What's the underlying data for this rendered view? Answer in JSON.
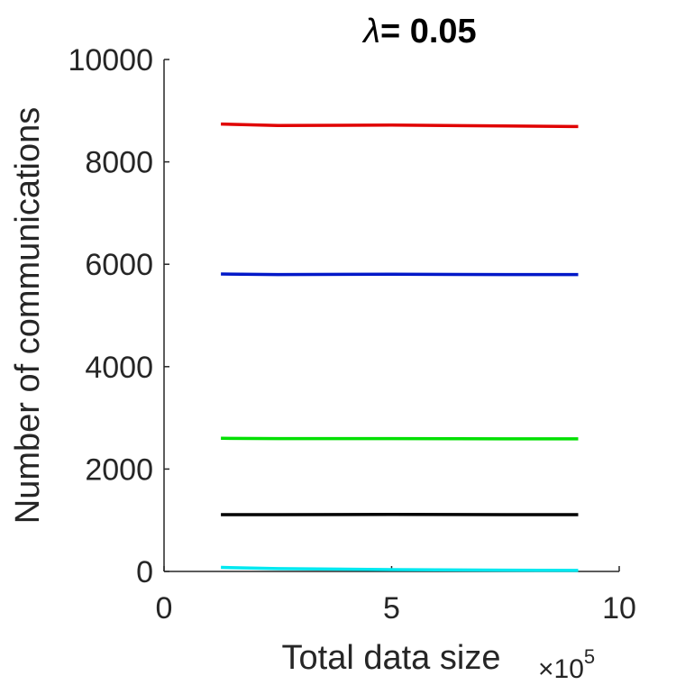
{
  "chart_data": {
    "type": "line",
    "title": {
      "symbol": "λ",
      "text": "= 0.05"
    },
    "xlabel": "Total data size",
    "ylabel": "Number of communications",
    "x_multiplier": {
      "base": "×10",
      "exponent": "5"
    },
    "xlim": [
      0,
      10
    ],
    "ylim": [
      0,
      10000
    ],
    "x_ticks": [
      0,
      5,
      10
    ],
    "y_ticks": [
      0,
      2000,
      4000,
      6000,
      8000,
      10000
    ],
    "grid": false,
    "legend": "none",
    "x": [
      1.25,
      2.5,
      5,
      7.5,
      9.1
    ],
    "series": [
      {
        "color": "#e00000",
        "values": [
          8740,
          8710,
          8720,
          8700,
          8690
        ]
      },
      {
        "color": "#0018c8",
        "values": [
          5810,
          5800,
          5805,
          5800,
          5800
        ]
      },
      {
        "color": "#00e000",
        "values": [
          2600,
          2595,
          2595,
          2590,
          2590
        ]
      },
      {
        "color": "#000000",
        "values": [
          1110,
          1110,
          1115,
          1110,
          1110
        ]
      },
      {
        "color": "#00e8f0",
        "values": [
          80,
          55,
          35,
          25,
          20
        ]
      }
    ]
  }
}
